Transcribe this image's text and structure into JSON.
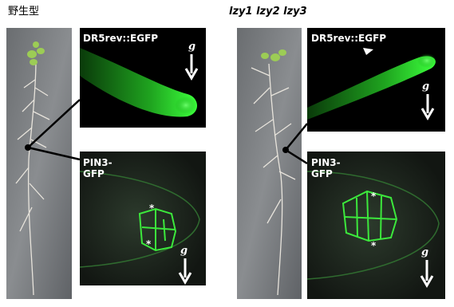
{
  "left": {
    "label": "野生型",
    "dr5": {
      "label": "DR5rev::EGFP",
      "gravity": "g"
    },
    "pin3": {
      "label_lines": [
        "PIN3-",
        "GFP"
      ],
      "asterisks": [
        "*",
        "*"
      ],
      "gravity": "g"
    }
  },
  "right": {
    "label": "lzy1 lzy2 lzy3",
    "dr5": {
      "label": "DR5rev::EGFP",
      "gravity": "g"
    },
    "pin3": {
      "label_lines": [
        "PIN3-",
        "GFP"
      ],
      "asterisks": [
        "*",
        "*"
      ],
      "gravity": "g"
    }
  }
}
